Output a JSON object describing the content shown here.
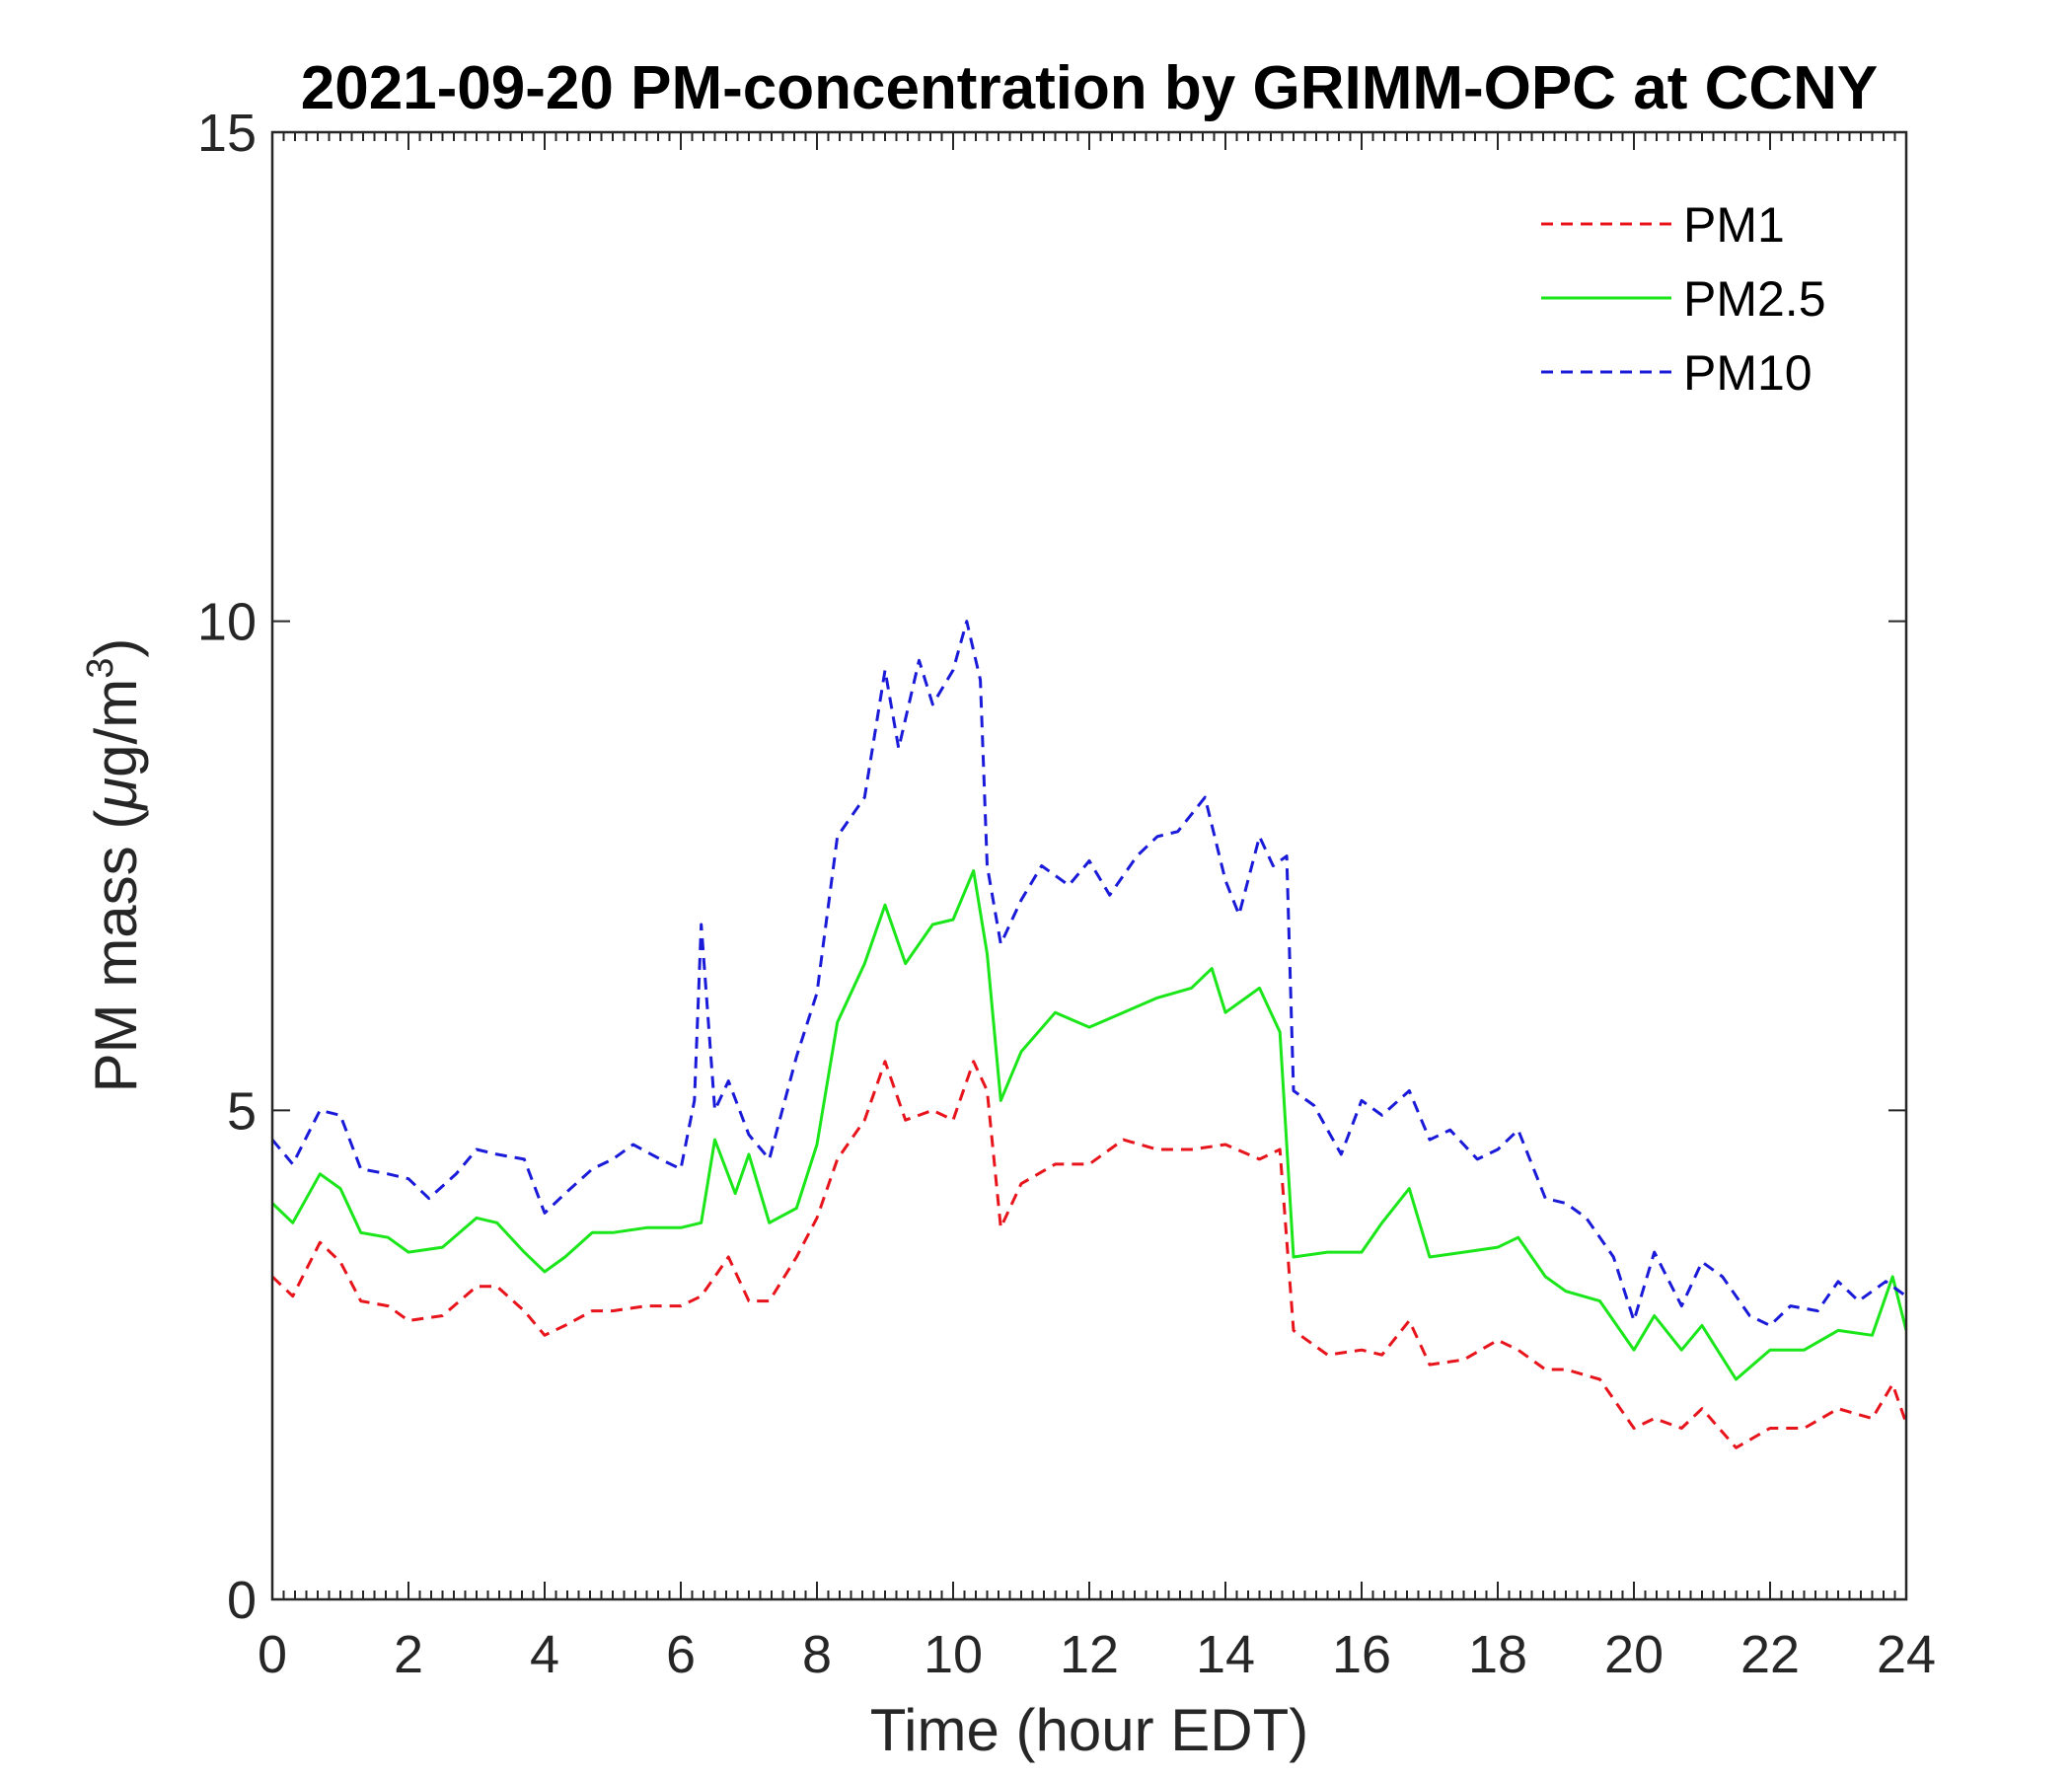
{
  "chart_data": {
    "type": "line",
    "title": "2021-09-20 PM-concentration by GRIMM-OPC at CCNY",
    "xlabel": "Time (hour EDT)",
    "ylabel_main": "PM mass (",
    "ylabel_mu": "μ",
    "ylabel_unit": "g/m",
    "ylabel_sup": "3",
    "ylabel_close": ")",
    "xlim": [
      0,
      24
    ],
    "ylim": [
      0,
      15
    ],
    "xticks": [
      "0",
      "2",
      "4",
      "6",
      "8",
      "10",
      "12",
      "14",
      "16",
      "18",
      "20",
      "22",
      "24"
    ],
    "yticks": [
      "0",
      "5",
      "10",
      "15"
    ],
    "grid": false,
    "legend_position": "top-right",
    "series": [
      {
        "name": "PM1",
        "color": "#e8141c",
        "style": "dashed",
        "x": [
          0,
          0.3,
          0.7,
          1.0,
          1.3,
          1.7,
          2.0,
          2.5,
          3.0,
          3.3,
          3.7,
          4.0,
          4.3,
          4.7,
          5.0,
          5.5,
          6.0,
          6.3,
          6.7,
          7.0,
          7.3,
          7.7,
          8.0,
          8.3,
          8.7,
          9.0,
          9.3,
          9.7,
          10.0,
          10.3,
          10.5,
          10.7,
          11.0,
          11.5,
          12.0,
          12.5,
          13.0,
          13.5,
          14.0,
          14.5,
          14.8,
          15.0,
          15.5,
          16.0,
          16.3,
          16.7,
          17.0,
          17.5,
          18.0,
          18.3,
          18.7,
          19.0,
          19.5,
          20.0,
          20.3,
          20.7,
          21.0,
          21.5,
          22.0,
          22.5,
          23.0,
          23.5,
          23.8,
          24.0
        ],
        "values": [
          3.3,
          3.1,
          3.65,
          3.45,
          3.05,
          3.0,
          2.85,
          2.9,
          3.2,
          3.2,
          2.95,
          2.7,
          2.8,
          2.95,
          2.95,
          3.0,
          3.0,
          3.1,
          3.5,
          3.05,
          3.05,
          3.5,
          3.9,
          4.5,
          4.9,
          5.5,
          4.9,
          5.0,
          4.9,
          5.5,
          5.2,
          3.8,
          4.25,
          4.45,
          4.45,
          4.7,
          4.6,
          4.6,
          4.65,
          4.5,
          4.6,
          2.75,
          2.5,
          2.55,
          2.5,
          2.85,
          2.4,
          2.45,
          2.65,
          2.55,
          2.35,
          2.35,
          2.25,
          1.75,
          1.85,
          1.75,
          1.95,
          1.55,
          1.75,
          1.75,
          1.95,
          1.85,
          2.2,
          1.8
        ]
      },
      {
        "name": "PM2.5",
        "color": "#1ae61a",
        "style": "solid",
        "x": [
          0,
          0.3,
          0.7,
          1.0,
          1.3,
          1.7,
          2.0,
          2.5,
          3.0,
          3.3,
          3.7,
          4.0,
          4.3,
          4.7,
          5.0,
          5.5,
          6.0,
          6.3,
          6.5,
          6.8,
          7.0,
          7.3,
          7.7,
          8.0,
          8.3,
          8.7,
          9.0,
          9.3,
          9.7,
          10.0,
          10.3,
          10.5,
          10.7,
          11.0,
          11.5,
          12.0,
          12.5,
          13.0,
          13.5,
          13.8,
          14.0,
          14.5,
          14.8,
          15.0,
          15.5,
          16.0,
          16.3,
          16.7,
          17.0,
          17.5,
          18.0,
          18.3,
          18.7,
          19.0,
          19.5,
          20.0,
          20.3,
          20.7,
          21.0,
          21.5,
          22.0,
          22.5,
          23.0,
          23.5,
          23.8,
          24.0
        ],
        "values": [
          4.05,
          3.85,
          4.35,
          4.2,
          3.75,
          3.7,
          3.55,
          3.6,
          3.9,
          3.85,
          3.55,
          3.35,
          3.5,
          3.75,
          3.75,
          3.8,
          3.8,
          3.85,
          4.7,
          4.15,
          4.55,
          3.85,
          4.0,
          4.65,
          5.9,
          6.5,
          7.1,
          6.5,
          6.9,
          6.95,
          7.45,
          6.6,
          5.1,
          5.6,
          6.0,
          5.85,
          6.0,
          6.15,
          6.25,
          6.45,
          6.0,
          6.25,
          5.8,
          3.5,
          3.55,
          3.55,
          3.85,
          4.2,
          3.5,
          3.55,
          3.6,
          3.7,
          3.3,
          3.15,
          3.05,
          2.55,
          2.9,
          2.55,
          2.8,
          2.25,
          2.55,
          2.55,
          2.75,
          2.7,
          3.3,
          2.75
        ]
      },
      {
        "name": "PM10",
        "color": "#1a1ad9",
        "style": "dashed",
        "x": [
          0,
          0.3,
          0.7,
          1.0,
          1.3,
          1.7,
          2.0,
          2.3,
          2.7,
          3.0,
          3.3,
          3.7,
          4.0,
          4.3,
          4.7,
          5.0,
          5.3,
          5.7,
          6.0,
          6.2,
          6.3,
          6.5,
          6.7,
          7.0,
          7.3,
          7.7,
          8.0,
          8.3,
          8.7,
          9.0,
          9.2,
          9.5,
          9.7,
          10.0,
          10.2,
          10.4,
          10.5,
          10.7,
          11.0,
          11.3,
          11.7,
          12.0,
          12.3,
          12.7,
          13.0,
          13.3,
          13.7,
          14.0,
          14.2,
          14.5,
          14.7,
          14.9,
          15.0,
          15.3,
          15.7,
          16.0,
          16.3,
          16.7,
          17.0,
          17.3,
          17.7,
          18.0,
          18.3,
          18.7,
          19.0,
          19.3,
          19.7,
          20.0,
          20.3,
          20.7,
          21.0,
          21.3,
          21.7,
          22.0,
          22.3,
          22.7,
          23.0,
          23.3,
          23.7,
          24.0
        ],
        "values": [
          4.7,
          4.45,
          5.0,
          4.95,
          4.4,
          4.35,
          4.3,
          4.1,
          4.35,
          4.6,
          4.55,
          4.5,
          3.95,
          4.15,
          4.4,
          4.5,
          4.65,
          4.5,
          4.4,
          5.1,
          6.9,
          5.0,
          5.3,
          4.75,
          4.5,
          5.55,
          6.2,
          7.8,
          8.2,
          9.5,
          8.7,
          9.6,
          9.15,
          9.5,
          10.0,
          9.4,
          7.5,
          6.7,
          7.15,
          7.5,
          7.3,
          7.55,
          7.2,
          7.6,
          7.8,
          7.85,
          8.2,
          7.35,
          7.0,
          7.8,
          7.5,
          7.6,
          5.2,
          5.05,
          4.55,
          5.1,
          4.95,
          5.2,
          4.7,
          4.8,
          4.5,
          4.6,
          4.8,
          4.1,
          4.05,
          3.9,
          3.5,
          2.85,
          3.55,
          3.0,
          3.45,
          3.3,
          2.9,
          2.8,
          3.0,
          2.95,
          3.25,
          3.05,
          3.25,
          3.1
        ]
      }
    ]
  }
}
